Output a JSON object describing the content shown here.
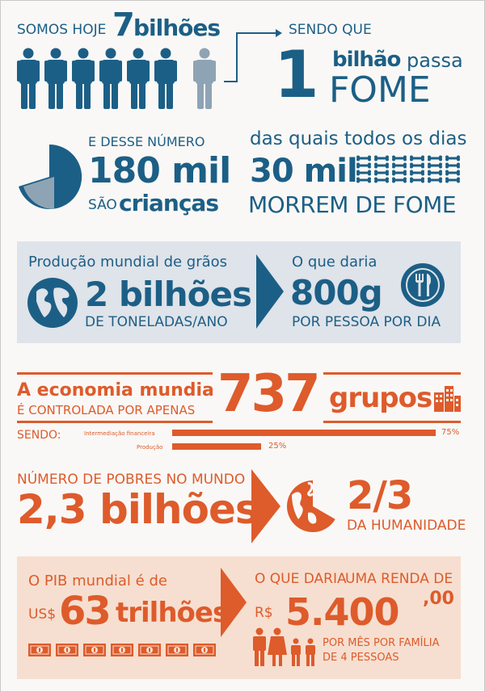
{
  "colors": {
    "blue": "#1c5f86",
    "grey_blue": "#8ea4b5",
    "orange": "#de5b2b",
    "panel_blue": "#dfe3ea",
    "panel_orange": "#f6dfd0"
  },
  "section1": {
    "intro": "SOMOS HOJE",
    "number": "7",
    "unit": "bilhões",
    "people_icons": 7,
    "connector": "SENDO QUE",
    "hunger_number": "1",
    "hunger_unit": "bilhão",
    "hunger_text": "passa",
    "hunger_word": "FOME"
  },
  "section2": {
    "prefix": "E DESSE NÚMERO",
    "number": "180 mil",
    "are": "SÃO",
    "children": "crianças",
    "daily": "das quais todos os dias",
    "deaths_number": "30 mil",
    "die": "MORREM DE FOME",
    "icons": [
      "pie-chart-icon",
      "bones-icon"
    ]
  },
  "section3": {
    "title": "Produção mundial de grãos",
    "number": "2 bilhões",
    "unit": "DE TONELADAS/ANO",
    "would_give": "O que daria",
    "amount": "800g",
    "per": "POR PESSOA POR DIA",
    "icons": [
      "globe-icon",
      "plate-cutlery-icon"
    ]
  },
  "section4": {
    "economy": "A economia mundial",
    "controlled": "É CONTROLADA POR APENAS",
    "number": "737",
    "groups": "grupos",
    "being": "SENDO:",
    "bars": [
      {
        "label": "Intermediação financeira",
        "value": 75,
        "value_label": "75%"
      },
      {
        "label": "Produção",
        "value": 25,
        "value_label": "25%"
      }
    ]
  },
  "section5": {
    "poor_label": "NÚMERO DE POBRES NO MUNDO",
    "poor_number": "2,3 bilhões",
    "fraction": "2/3",
    "humanity": "DA HUMANIDADE"
  },
  "section6": {
    "gdp_label": "O PIB mundial é de",
    "currency": "US$",
    "gdp_number": "63",
    "gdp_unit": "trilhões",
    "would_give": "O QUE DARIA",
    "income": "UMA RENDA DE",
    "real": "R$",
    "income_number": "5.400",
    "cents": ",00",
    "per_month": "POR MÊS POR FAMÍLIA",
    "family": "DE 4 PESSOAS",
    "money_icons": 7,
    "family_icons": 4
  }
}
